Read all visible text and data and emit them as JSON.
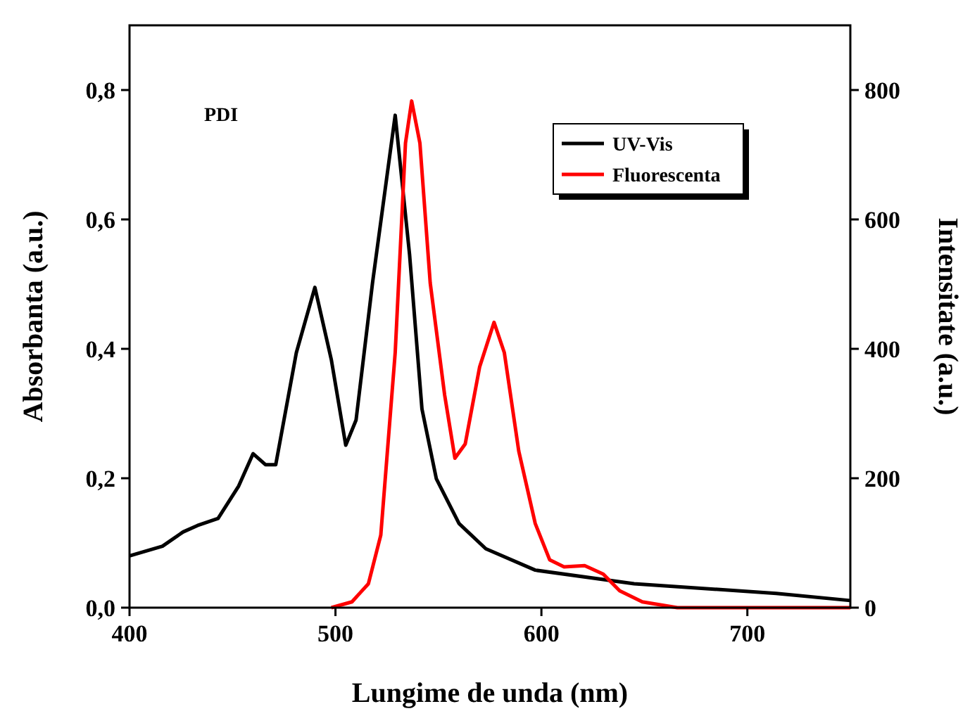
{
  "chart_data": {
    "type": "line",
    "xlabel": "Lungime de unda (nm)",
    "ylabel": "Absorbanta (a.u.)",
    "y2label": "Intensitate (a.u.)",
    "annotations": [
      "PDI"
    ],
    "xlim": [
      400,
      750
    ],
    "xticks": [
      400,
      500,
      600,
      700
    ],
    "ylim": [
      0,
      0.9
    ],
    "yticks": [
      {
        "value": 0,
        "label": "0,0"
      },
      {
        "value": 0.2,
        "label": "0,2"
      },
      {
        "value": 0.4,
        "label": "0,4"
      },
      {
        "value": 0.6,
        "label": "0,6"
      },
      {
        "value": 0.8,
        "label": "0,8"
      }
    ],
    "y2lim": [
      0,
      900
    ],
    "y2ticks": [
      0,
      200,
      400,
      600,
      800
    ],
    "legend": "top right",
    "grid": false,
    "line_style": "solid",
    "marker": "none",
    "series": [
      {
        "name": "UV-Vis",
        "color": "#000000",
        "x": [
          400,
          416,
          426,
          433,
          443,
          453,
          460,
          466,
          471,
          481,
          490,
          498,
          505,
          510,
          518,
          529,
          536,
          542,
          549,
          560,
          573,
          597,
          645,
          714,
          750
        ],
        "values": [
          0.08,
          0.095,
          0.117,
          0.127,
          0.138,
          0.188,
          0.238,
          0.221,
          0.221,
          0.394,
          0.495,
          0.383,
          0.251,
          0.29,
          0.502,
          0.761,
          0.545,
          0.307,
          0.199,
          0.13,
          0.091,
          0.058,
          0.037,
          0.022,
          0.011
        ]
      },
      {
        "name": "Fluorescenta",
        "color": "#ff0000",
        "axis": "y2",
        "x": [
          498,
          508,
          516,
          522,
          529,
          534,
          537,
          541,
          546,
          553,
          558,
          563,
          570,
          577,
          582,
          589,
          597,
          604,
          611,
          621,
          630,
          638,
          649,
          666,
          750
        ],
        "values": [
          0,
          9,
          37,
          112,
          394,
          718,
          783,
          718,
          502,
          329,
          231,
          253,
          372,
          441,
          394,
          242,
          130,
          74,
          63,
          65,
          52,
          26,
          9,
          0,
          0
        ]
      }
    ]
  }
}
